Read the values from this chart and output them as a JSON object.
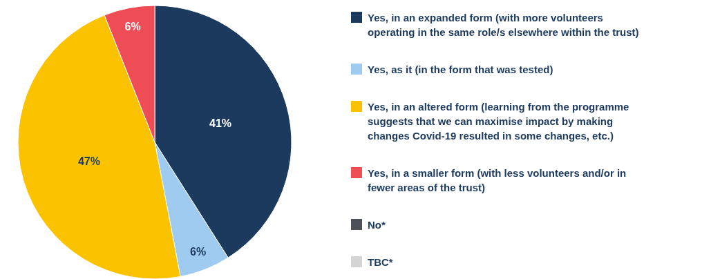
{
  "chart_data": {
    "type": "pie",
    "categories": [
      "Yes, in an expanded form (with more volunteers operating in the same role/s elsewhere within the trust)",
      "Yes, as it (in the form that was tested)",
      "Yes, in an altered form (learning from the programme suggests that we can maximise impact by making changes Covid-19 resulted in some changes, etc.)",
      "Yes, in a smaller form (with less volunteers and/or in fewer areas of the trust)",
      "No*",
      "TBC*"
    ],
    "values": [
      41,
      6,
      47,
      6,
      0,
      0
    ],
    "colors": [
      "#1c3a5e",
      "#9ecbef",
      "#fbc200",
      "#ee4d55",
      "#4d5059",
      "#d4d4d4"
    ],
    "value_labels": [
      "41%",
      "6%",
      "47%",
      "6%",
      null,
      null
    ],
    "legend": "right"
  }
}
